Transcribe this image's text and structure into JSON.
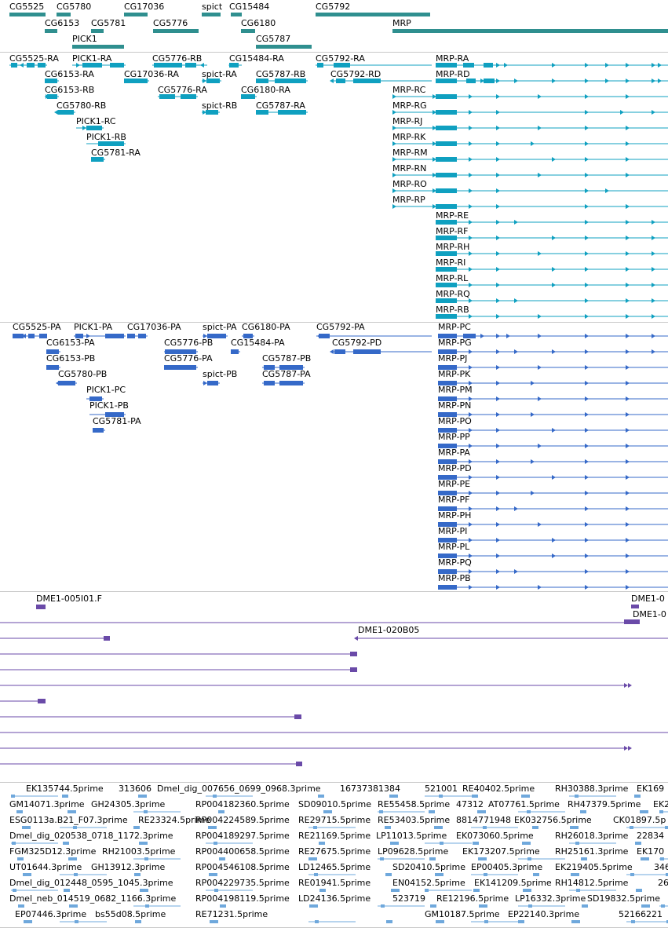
{
  "colors": {
    "gene": "#2f8f8f",
    "transcript": "#0fa0c0",
    "protein": "#3569c8",
    "clone": "#6a4aa8",
    "est": "#6fa8dc"
  },
  "genes": [
    "CG5525",
    "CG5780",
    "CG17036",
    "spict",
    "CG15484",
    "CG5792",
    "CG6153",
    "CG5781",
    "CG5776",
    "CG6180",
    "MRP",
    "PICK1",
    "CG5787"
  ],
  "transcripts": [
    "CG5525-RA",
    "PICK1-RA",
    "CG5776-RB",
    "CG15484-RA",
    "CG5792-RA",
    "MRP-RA",
    "CG6153-RA",
    "CG17036-RA",
    "spict-RA",
    "CG5787-RB",
    "CG5792-RD",
    "MRP-RD",
    "CG6153-RB",
    "CG5776-RA",
    "CG6180-RA",
    "MRP-RC",
    "CG5780-RB",
    "spict-RB",
    "CG5787-RA",
    "MRP-RG",
    "PICK1-RC",
    "MRP-RJ",
    "PICK1-RB",
    "MRP-RK",
    "CG5781-RA",
    "MRP-RM",
    "MRP-RN",
    "MRP-RO",
    "MRP-RP",
    "MRP-RE",
    "MRP-RF",
    "MRP-RH",
    "MRP-RI",
    "MRP-RL",
    "MRP-RQ",
    "MRP-RB"
  ],
  "proteins": [
    "CG5525-PA",
    "PICK1-PA",
    "CG17036-PA",
    "spict-PA",
    "CG6180-PA",
    "CG5792-PA",
    "MRP-PC",
    "CG6153-PA",
    "CG5776-PB",
    "CG15484-PA",
    "CG5792-PD",
    "MRP-PG",
    "CG6153-PB",
    "CG5776-PA",
    "CG5787-PB",
    "MRP-PJ",
    "CG5780-PB",
    "spict-PB",
    "CG5787-PA",
    "MRP-PK",
    "PICK1-PC",
    "MRP-PM",
    "PICK1-PB",
    "MRP-PN",
    "CG5781-PA",
    "MRP-PO",
    "MRP-PP",
    "MRP-PA",
    "MRP-PD",
    "MRP-PE",
    "MRP-PF",
    "MRP-PH",
    "MRP-PI",
    "MRP-PL",
    "MRP-PQ",
    "MRP-PB"
  ],
  "clones": [
    "DME1-005I01.F",
    "DME1-0",
    "DME1-0",
    "DME1-020B05"
  ],
  "ests": [
    [
      "EK135744.5prime",
      "313606",
      "Dmel_dig_007656_0699_0968.3prime",
      "16737381384",
      "521001",
      "RE40402.5prime",
      "RH30388.3prime",
      "EK169"
    ],
    [
      "GM14071.3prime",
      "GH24305.3prime",
      "RP004182360.5prime",
      "SD09010.5prime",
      "RE55458.5prime",
      "47312",
      "AT07761.5prime",
      "RH47379.5prime",
      "EK2"
    ],
    [
      "ESG0113a.B21_F07.3prime",
      "RE23324.5prime",
      "RP004224589.5prime",
      "RE29715.5prime",
      "RE53403.5prime",
      "8814771948",
      "EK032756.5prime",
      "CK01897.5p"
    ],
    [
      "Dmel_dig_020538_0718_1172.3prime",
      "RP004189297.5prime",
      "RE21169.5prime",
      "LP11013.5prime",
      "EK073060.5prime",
      "RH26018.3prime",
      "22834"
    ],
    [
      "FGM325D12.3prime",
      "RH21003.5prime",
      "RP004400658.5prime",
      "RE27675.5prime",
      "LP09628.5prime",
      "EK173207.5prime",
      "RH25161.3prime",
      "EK170"
    ],
    [
      "UT01644.3prime",
      "GH13912.3prime",
      "RP004546108.5prime",
      "LD12465.5prime",
      "SD20410.5prime",
      "EP00405.3prime",
      "EK219405.5prime",
      "346"
    ],
    [
      "Dmel_dig_012448_0595_1045.3prime",
      "RP004229735.5prime",
      "RE01941.5prime",
      "EN04152.5prime",
      "EK141209.5prime",
      "RH14812.5prime",
      "26"
    ],
    [
      "Dmel_neb_014519_0682_1166.3prime",
      "RP004198119.5prime",
      "LD24136.5prime",
      "523719",
      "RE12196.5prime",
      "LP16332.3prime",
      "SD19832.5prime"
    ],
    [
      "EP07446.3prime",
      "bs55d08.5prime",
      "RE71231.5prime",
      "GM10187.5prime",
      "EP22140.3prime",
      "52166221"
    ]
  ]
}
